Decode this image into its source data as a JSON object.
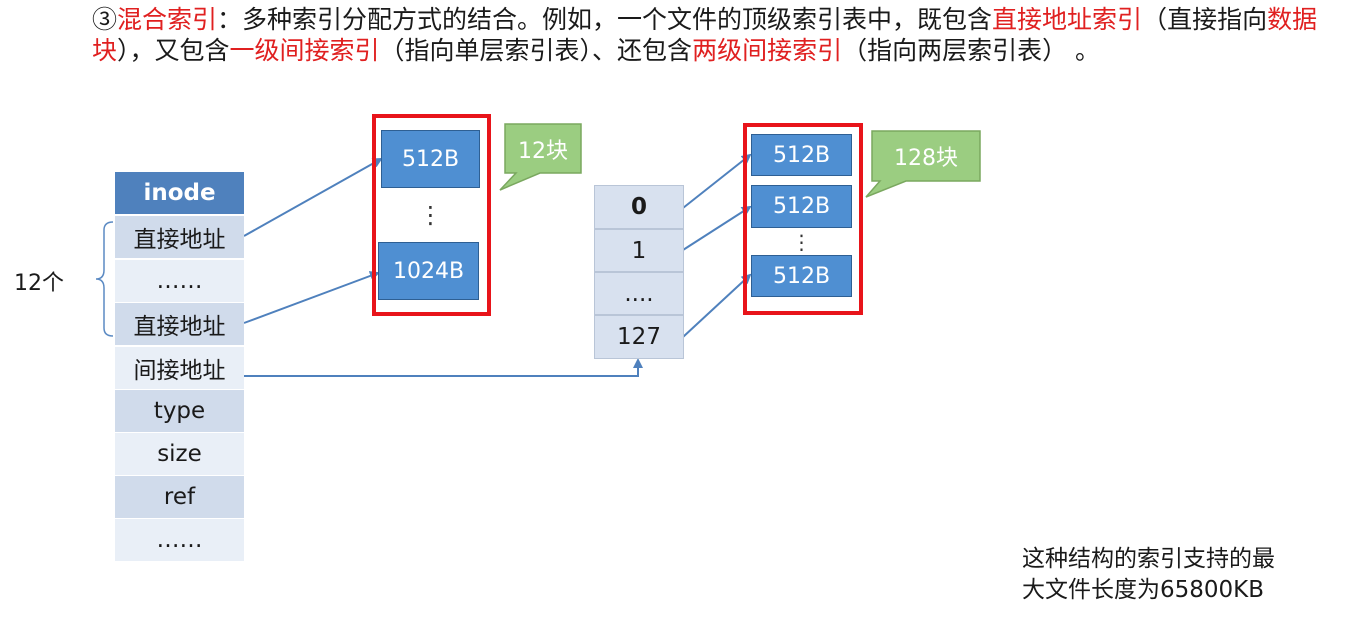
{
  "intro": {
    "prefix": "③",
    "title": "混合索引",
    "text1": "：多种索引分配方式的结合。例如，一个文件的顶级索引表中，既包含",
    "direct_index": "直接地址索引",
    "text2": "（直接指向",
    "data_block": "数据块",
    "text3": "），又包含",
    "single_indirect": "一级间接索引",
    "text4": "（指向单层索引表）、还包含",
    "double_indirect": "两级间接索引",
    "text5": "（指向两层索引表） 。"
  },
  "inode": {
    "header": "inode",
    "rows": [
      "直接地址",
      "……",
      "直接地址",
      "间接地址",
      "type",
      "size",
      "ref",
      "……"
    ]
  },
  "brace_label": "12个",
  "direct_blocks": {
    "top": "512B",
    "bottom": "1024B",
    "dots": "⋮",
    "callout": "12块"
  },
  "index_table": {
    "rows": [
      "0",
      "1",
      "....",
      "127"
    ]
  },
  "indirect_blocks": {
    "items": [
      "512B",
      "512B",
      "512B"
    ],
    "dots": "⋮",
    "callout": "128块"
  },
  "note": {
    "line1": "这种结构的索引支持的最",
    "line2": "大文件长度为65800KB"
  },
  "colors": {
    "highlight": "#e02020",
    "block_fill": "#4f8fd2",
    "red_box": "#e8141a",
    "callout_fill": "#9bcd81",
    "arrow": "#4f81bd"
  }
}
